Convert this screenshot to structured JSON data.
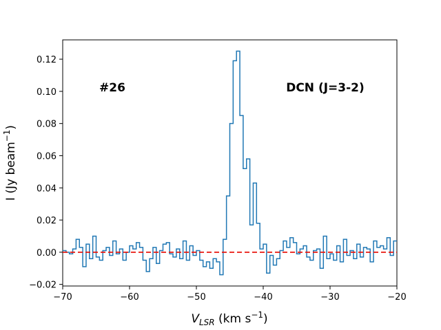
{
  "chart_data": {
    "type": "line",
    "drawstyle": "steps-mid",
    "xlabel": [
      "V",
      "LSR",
      " (km s",
      "−1",
      ")"
    ],
    "ylabel": [
      "I (Jy beam",
      "−1",
      ")"
    ],
    "annotations": [
      "#26",
      "DCN (J=3-2)"
    ],
    "color": "#1f77b4",
    "reference_line": {
      "value": 0,
      "color": "#e8150c"
    },
    "xlim": [
      -70,
      -20
    ],
    "ylim": [
      -0.021,
      0.132
    ],
    "xticks": [
      {
        "value": -70,
        "label": "−70"
      },
      {
        "value": -60,
        "label": "−60"
      },
      {
        "value": -50,
        "label": "−50"
      },
      {
        "value": -40,
        "label": "−40"
      },
      {
        "value": -30,
        "label": "−30"
      },
      {
        "value": -20,
        "label": "−20"
      }
    ],
    "yticks": [
      {
        "value": -0.02,
        "label": "−0.02"
      },
      {
        "value": 0,
        "label": "0.00"
      },
      0.02,
      0.04,
      0.06,
      0.08,
      {
        "value": 0.1,
        "label": "0.10"
      },
      0.12
    ],
    "x": [
      -69.75,
      -69.25,
      -68.75,
      -68.25,
      -67.75,
      -67.25,
      -66.75,
      -66.25,
      -65.75,
      -65.25,
      -64.75,
      -64.25,
      -63.75,
      -63.25,
      -62.75,
      -62.25,
      -61.75,
      -61.25,
      -60.75,
      -60.25,
      -59.75,
      -59.25,
      -58.75,
      -58.25,
      -57.75,
      -57.25,
      -56.75,
      -56.25,
      -55.75,
      -55.25,
      -54.75,
      -54.25,
      -53.75,
      -53.25,
      -52.75,
      -52.25,
      -51.75,
      -51.25,
      -50.75,
      -50.25,
      -49.75,
      -49.25,
      -48.75,
      -48.25,
      -47.75,
      -47.25,
      -46.75,
      -46.25,
      -45.75,
      -45.25,
      -44.75,
      -44.25,
      -43.75,
      -43.25,
      -42.75,
      -42.25,
      -41.75,
      -41.25,
      -40.75,
      -40.25,
      -39.75,
      -39.25,
      -38.75,
      -38.25,
      -37.75,
      -37.25,
      -36.75,
      -36.25,
      -35.75,
      -35.25,
      -34.75,
      -34.25,
      -33.75,
      -33.25,
      -32.75,
      -32.25,
      -31.75,
      -31.25,
      -30.75,
      -30.25,
      -29.75,
      -29.25,
      -28.75,
      -28.25,
      -27.75,
      -27.25,
      -26.75,
      -26.25,
      -25.75,
      -25.25,
      -24.75,
      -24.25,
      -23.75,
      -23.25,
      -22.75,
      -22.25,
      -21.75,
      -21.25,
      -20.75,
      -20.25
    ],
    "values": [
      0.001,
      0,
      -0.001,
      0.002,
      0.008,
      0.003,
      -0.009,
      0.005,
      -0.004,
      0.01,
      -0.003,
      -0.005,
      0.001,
      0.003,
      -0.002,
      0.007,
      -0.001,
      0.002,
      -0.005,
      0,
      0.004,
      0.002,
      0.006,
      0.003,
      -0.005,
      -0.012,
      -0.004,
      0.003,
      -0.007,
      0.001,
      0.005,
      0.006,
      -0.001,
      -0.003,
      0.002,
      -0.004,
      0.007,
      -0.005,
      0.004,
      -0.002,
      0.001,
      -0.005,
      -0.009,
      -0.006,
      -0.01,
      -0.004,
      -0.006,
      -0.014,
      0.008,
      0.035,
      0.08,
      0.119,
      0.125,
      0.085,
      0.052,
      0.058,
      0.017,
      0.043,
      0.018,
      0.002,
      0.005,
      -0.013,
      -0.002,
      -0.008,
      -0.004,
      0.001,
      0.007,
      0.003,
      0.009,
      0.006,
      -0.001,
      0.002,
      0.004,
      -0.003,
      -0.005,
      0.001,
      0.002,
      -0.01,
      0.01,
      -0.004,
      -0.001,
      -0.005,
      0.004,
      -0.006,
      0.008,
      -0.002,
      0.001,
      -0.004,
      0.005,
      -0.003,
      0.003,
      0.002,
      -0.006,
      0.007,
      0.003,
      0.004,
      0.002,
      0.009,
      -0.002,
      0.007
    ]
  }
}
